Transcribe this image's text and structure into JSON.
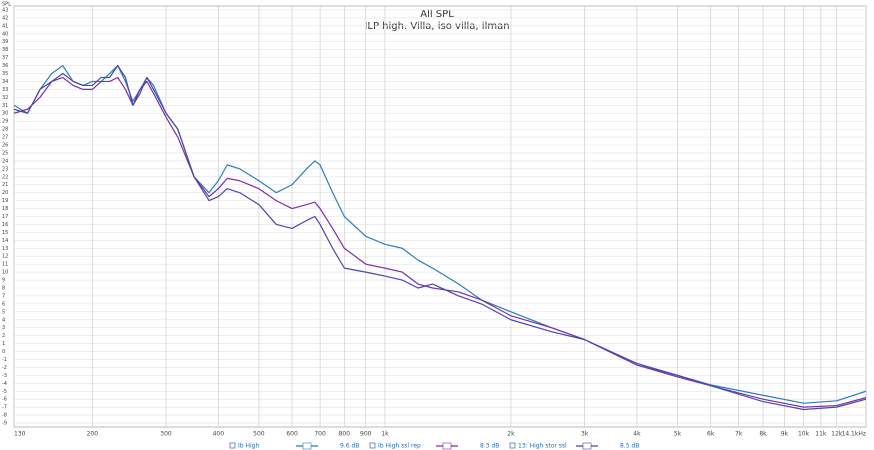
{
  "chart_data": {
    "type": "line",
    "title": "All SPL",
    "subtitle": "ILP high. Villa, iso villa, ilman",
    "y_label": "SPL",
    "log_x": true,
    "grid": true,
    "xlim": [
      130,
      14100
    ],
    "xticks": [
      130,
      200,
      300,
      400,
      500,
      600,
      700,
      800,
      900,
      {
        "value": 1000,
        "label": "1k"
      },
      {
        "value": 2000,
        "label": "2k"
      },
      {
        "value": 3000,
        "label": "3k"
      },
      {
        "value": 4000,
        "label": "4k"
      },
      {
        "value": 5000,
        "label": "5k"
      },
      {
        "value": 6000,
        "label": "6k"
      },
      {
        "value": 7000,
        "label": "7k"
      },
      {
        "value": 8000,
        "label": "8k"
      },
      {
        "value": 9000,
        "label": "9k"
      },
      {
        "value": 10000,
        "label": "10k"
      },
      {
        "value": 11000,
        "label": "11k"
      },
      {
        "value": 12000,
        "label": "12k"
      },
      {
        "value": 14100,
        "label": "14.1kHz"
      }
    ],
    "ylim": [
      -9.5,
      43.5
    ],
    "yticks": [
      -9,
      -8,
      -7,
      -6,
      -5,
      -4,
      -3,
      -2,
      -1,
      0,
      1,
      2,
      3,
      4,
      5,
      6,
      7,
      8,
      9,
      10,
      11,
      12,
      13,
      14,
      15,
      16,
      17,
      18,
      19,
      20,
      21,
      22,
      23,
      24,
      25,
      26,
      27,
      28,
      29,
      30,
      31,
      32,
      33,
      34,
      35,
      36,
      37,
      38,
      39,
      40,
      41,
      42,
      43
    ],
    "x": [
      130,
      140,
      150,
      160,
      170,
      180,
      190,
      200,
      210,
      220,
      230,
      240,
      250,
      260,
      270,
      280,
      300,
      320,
      350,
      380,
      400,
      420,
      450,
      500,
      550,
      600,
      650,
      680,
      700,
      750,
      800,
      900,
      1000,
      1100,
      1200,
      1300,
      1500,
      1700,
      2000,
      2500,
      3000,
      4000,
      5000,
      6000,
      8000,
      10000,
      12000,
      14100
    ],
    "series": [
      {
        "name": "Ib High",
        "color": "#2b7fb8",
        "legend_value": "9.6 dB",
        "values": [
          31,
          30,
          33,
          35,
          36,
          34,
          33.5,
          34,
          34,
          35,
          36,
          34,
          31.5,
          33,
          34.5,
          33.5,
          30,
          28,
          22,
          20,
          21.5,
          23.5,
          23,
          21.5,
          20,
          21,
          23,
          24,
          23.5,
          20,
          17,
          14.5,
          13.5,
          13,
          11.5,
          10.5,
          8.5,
          6.5,
          5,
          3,
          1.5,
          -1.7,
          -3,
          -4.2,
          -5.5,
          -6.5,
          -6.2,
          -5
        ]
      },
      {
        "name": "Ib High ssl rep",
        "color": "#7d2fa6",
        "legend_value": "8.3 dB",
        "values": [
          30,
          30.5,
          32,
          34,
          34.5,
          33.5,
          33,
          33,
          34,
          34,
          34.5,
          33,
          31,
          33,
          34,
          32.5,
          29.5,
          27,
          22,
          19.5,
          20.5,
          21.8,
          21.5,
          20.5,
          19,
          18,
          18.5,
          18.8,
          18,
          15.5,
          13,
          11,
          10.5,
          10,
          8.5,
          8,
          7.5,
          6.5,
          4.5,
          3,
          1.5,
          -1.7,
          -3.2,
          -4.3,
          -6,
          -7,
          -6.8,
          -5.8
        ]
      },
      {
        "name": "13: High stor ssl",
        "color": "#4a48a8",
        "legend_value": "8.5 dB",
        "values": [
          30.5,
          30,
          33,
          34,
          35,
          34,
          33.5,
          33.5,
          34.5,
          34.5,
          36,
          34.5,
          31,
          32.5,
          34.5,
          33,
          30,
          28,
          22,
          19,
          19.5,
          20.5,
          20,
          18.5,
          16,
          15.5,
          16.5,
          17,
          16,
          13,
          10.5,
          10,
          9.5,
          9,
          8,
          8.5,
          7,
          6,
          4,
          2.5,
          1.5,
          -1.5,
          -3,
          -4.3,
          -6.3,
          -7.3,
          -7,
          -6
        ]
      }
    ]
  }
}
